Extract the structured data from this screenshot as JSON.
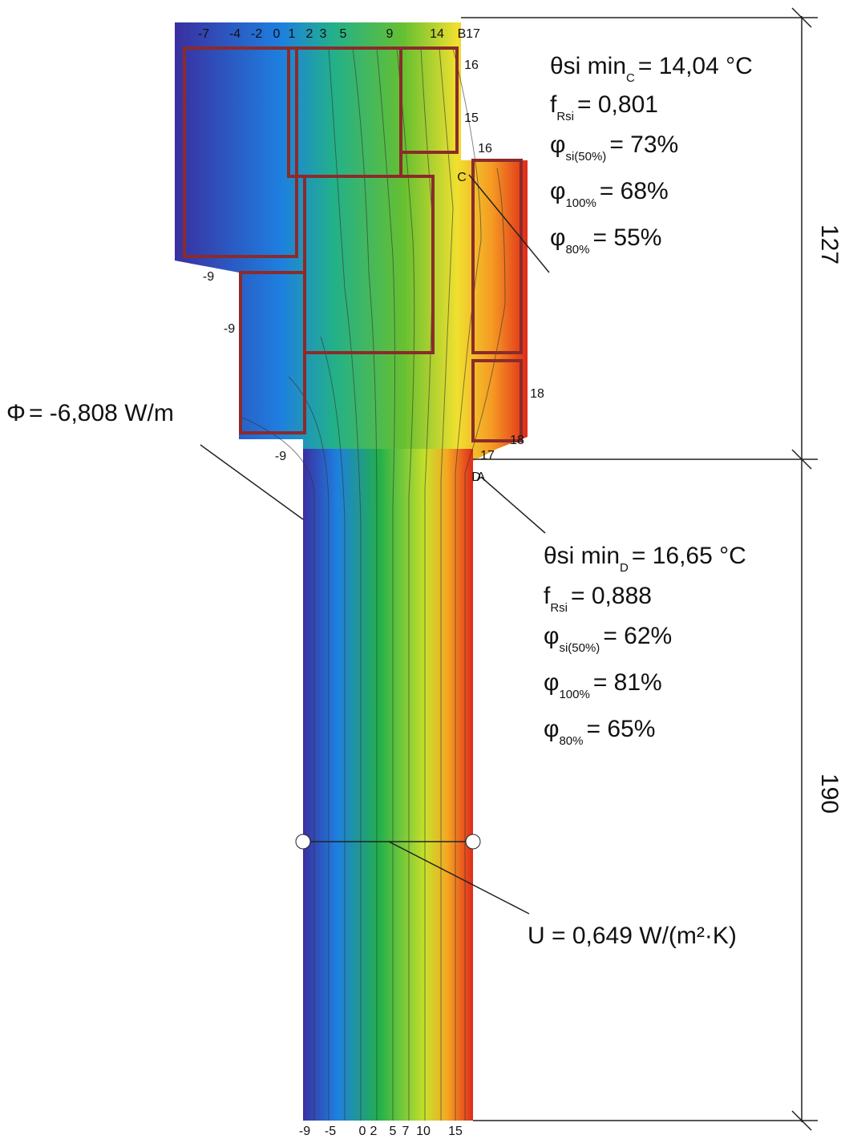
{
  "isotherm_labels": [
    "-7",
    "-4",
    "-2",
    "0",
    "1",
    "2",
    "3",
    "5",
    "9",
    "14",
    "17",
    "B",
    "16",
    "15",
    "16",
    "C",
    "-9",
    "-9",
    "18",
    "18",
    "-9",
    "17",
    "D",
    "A"
  ],
  "bottom_labels": [
    "-9",
    "-5",
    "0",
    "2",
    "5",
    "7",
    "10",
    "15"
  ],
  "annotations": {
    "point_c": [
      {
        "symbol": "θsi min",
        "sub": "C",
        "text": "= 14,04 °C"
      },
      {
        "symbol": "f",
        "sub": "Rsi",
        "text": "= 0,801"
      },
      {
        "symbol": "φ",
        "sub": "si(50%)",
        "text": "= 73%"
      },
      {
        "symbol": "φ",
        "sub": "100%",
        "text": "= 68%"
      },
      {
        "symbol": "φ",
        "sub": "80%",
        "text": "= 55%"
      }
    ],
    "point_d": [
      {
        "symbol": "θsi min",
        "sub": "D",
        "text": "= 16,65 °C"
      },
      {
        "symbol": "f",
        "sub": "Rsi",
        "text": "= 0,888"
      },
      {
        "symbol": "φ",
        "sub": "si(50%)",
        "text": "= 62%"
      },
      {
        "symbol": "φ",
        "sub": "100%",
        "text": "= 81%"
      },
      {
        "symbol": "φ",
        "sub": "80%",
        "text": "= 65%"
      }
    ]
  },
  "heat_flow": {
    "symbol": "Φ",
    "text": "= -6,808 W/m"
  },
  "u_value": "U = 0,649 W/(m²·K)",
  "dimensions": [
    "127",
    "190"
  ]
}
